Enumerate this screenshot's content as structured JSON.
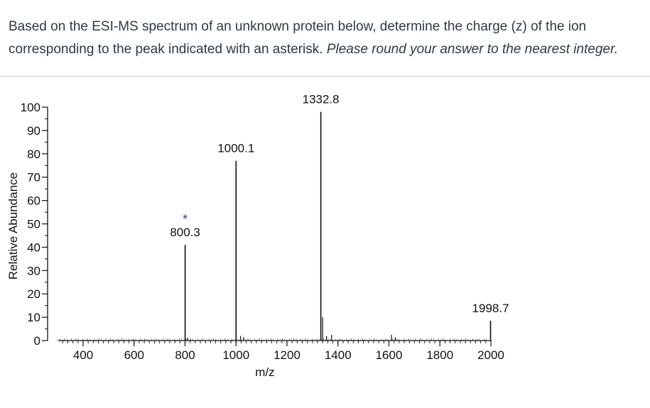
{
  "question": {
    "text": "Based on the ESI-MS spectrum of an unknown protein below, determine the charge (z) of the ion corresponding to the peak indicated with an asterisk.",
    "instruction": "Please round your answer to the nearest integer."
  },
  "chart_data": {
    "type": "bar",
    "xlabel": "m/z",
    "ylabel": "Relative Abundance",
    "xlim": [
      230,
      2000
    ],
    "ylim": [
      0,
      100
    ],
    "x_ticks": [
      400,
      600,
      800,
      1000,
      1200,
      1400,
      1600,
      1800,
      2000
    ],
    "y_ticks": [
      0,
      10,
      20,
      30,
      40,
      50,
      60,
      70,
      80,
      90,
      100
    ],
    "grid": false,
    "peaks": [
      {
        "x": 800.3,
        "y": 41,
        "label": "800.3",
        "marker": "*"
      },
      {
        "x": 1000.1,
        "y": 77,
        "label": "1000.1",
        "marker": ""
      },
      {
        "x": 1332.8,
        "y": 98,
        "label": "1332.8",
        "marker": ""
      },
      {
        "x": 1998.7,
        "y": 8.5,
        "label": "1998.7",
        "marker": ""
      }
    ],
    "minor_peaks": [
      {
        "x": 1340,
        "y": 10
      },
      {
        "x": 1355,
        "y": 2
      },
      {
        "x": 1375,
        "y": 2.5
      },
      {
        "x": 1018,
        "y": 2
      },
      {
        "x": 1030,
        "y": 1.5
      },
      {
        "x": 1610,
        "y": 2.5
      },
      {
        "x": 1625,
        "y": 1.5
      },
      {
        "x": 810,
        "y": 1.2
      }
    ]
  }
}
